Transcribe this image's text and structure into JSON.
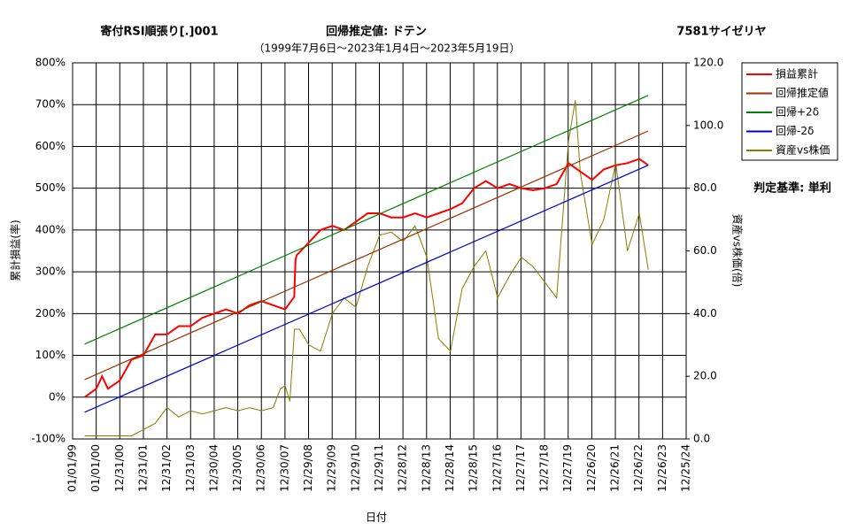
{
  "chart_data": {
    "type": "line",
    "title": "寄付RSI順張り[.]001",
    "subtitle": "（1999年7月6日～2023年1月4日～2023年5月19日）",
    "annotations": [
      "回帰推定値: ドテン",
      "7581サイゼリヤ",
      "判定基準: 単利"
    ],
    "xlabel": "日付",
    "ylabel": "累計損益(率)",
    "y2label": "資産vs株価(倍)",
    "xlim": [
      "01/01/99",
      "12/25/24"
    ],
    "xticks": [
      "01/01/99",
      "01/01/00",
      "12/31/00",
      "12/31/01",
      "12/31/02",
      "12/31/03",
      "12/30/04",
      "12/30/05",
      "12/30/06",
      "12/30/07",
      "12/29/08",
      "12/29/09",
      "12/29/10",
      "12/29/11",
      "12/28/12",
      "12/28/13",
      "12/28/14",
      "12/28/15",
      "12/27/16",
      "12/27/17",
      "12/27/18",
      "12/27/19",
      "12/26/20",
      "12/26/21",
      "12/26/22",
      "12/26/23",
      "12/25/24"
    ],
    "ylim": [
      -100,
      800
    ],
    "yticks": [
      {
        "value": -100,
        "label": "-100%"
      },
      {
        "value": 0,
        "label": "0%"
      },
      {
        "value": 100,
        "label": "100%"
      },
      {
        "value": 200,
        "label": "200%"
      },
      {
        "value": 300,
        "label": "300%"
      },
      {
        "value": 400,
        "label": "400%"
      },
      {
        "value": 500,
        "label": "500%"
      },
      {
        "value": 600,
        "label": "600%"
      },
      {
        "value": 700,
        "label": "700%"
      },
      {
        "value": 800,
        "label": "800%"
      }
    ],
    "y2lim": [
      0,
      120
    ],
    "y2ticks": [
      {
        "value": 0,
        "label": "0.0"
      },
      {
        "value": 20,
        "label": "20.0"
      },
      {
        "value": 40,
        "label": "40.0"
      },
      {
        "value": 60,
        "label": "60.0"
      },
      {
        "value": 80,
        "label": "80.0"
      },
      {
        "value": 100,
        "label": "100.0"
      },
      {
        "value": 120,
        "label": "120.0"
      }
    ],
    "grid": true,
    "legend": "right",
    "series": [
      {
        "name": "損益累計",
        "color": "#ff0000",
        "width": 2,
        "x": [
          "07/06/99",
          "01/01/00",
          "04/01/00",
          "07/01/00",
          "01/01/01",
          "07/01/01",
          "01/01/02",
          "07/01/02",
          "01/01/03",
          "07/01/03",
          "01/01/04",
          "07/01/04",
          "01/01/05",
          "07/01/05",
          "01/01/06",
          "07/01/06",
          "01/01/07",
          "07/01/07",
          "01/01/08",
          "05/20/08",
          "06/10/08",
          "07/01/08",
          "01/01/09",
          "07/01/09",
          "01/01/10",
          "07/01/10",
          "01/01/11",
          "07/01/11",
          "01/01/12",
          "07/01/12",
          "01/01/13",
          "07/01/13",
          "01/01/14",
          "07/01/14",
          "01/01/15",
          "07/01/15",
          "01/01/16",
          "07/01/16",
          "01/01/17",
          "07/01/17",
          "01/01/18",
          "07/01/18",
          "01/01/19",
          "07/01/19",
          "01/01/20",
          "07/01/20",
          "01/01/21",
          "07/01/21",
          "01/01/22",
          "07/01/22",
          "01/01/23",
          "05/19/23"
        ],
        "values": [
          0,
          20,
          50,
          20,
          40,
          90,
          100,
          150,
          150,
          170,
          170,
          190,
          200,
          210,
          200,
          220,
          230,
          220,
          210,
          240,
          330,
          340,
          370,
          400,
          410,
          400,
          420,
          440,
          440,
          430,
          430,
          440,
          430,
          440,
          450,
          464,
          500,
          517,
          500,
          510,
          500,
          495,
          500,
          510,
          560,
          540,
          520,
          545,
          555,
          560,
          570,
          555
        ]
      },
      {
        "name": "回帰推定値",
        "color": "#993300",
        "width": 1.2,
        "x": [
          "07/06/99",
          "05/19/23"
        ],
        "values": [
          42,
          637
        ]
      },
      {
        "name": "回帰+2δ",
        "color": "#008000",
        "width": 1.2,
        "x": [
          "07/06/99",
          "05/19/23"
        ],
        "values": [
          127,
          722
        ]
      },
      {
        "name": "回帰-2δ",
        "color": "#0000cc",
        "width": 1.2,
        "x": [
          "07/06/99",
          "05/19/23"
        ],
        "values": [
          -36,
          555
        ]
      },
      {
        "name": "資産vs株価",
        "color": "#808000",
        "width": 1,
        "axis": "y2",
        "x": [
          "07/06/99",
          "01/01/00",
          "01/01/01",
          "07/01/01",
          "01/01/02",
          "07/01/02",
          "01/01/03",
          "07/01/03",
          "01/01/04",
          "07/01/04",
          "01/01/05",
          "07/01/05",
          "01/01/06",
          "07/01/06",
          "01/01/07",
          "07/01/07",
          "10/20/07",
          "01/01/08",
          "03/15/08",
          "05/25/08",
          "08/10/08",
          "01/01/09",
          "07/01/09",
          "01/01/10",
          "07/01/10",
          "01/01/11",
          "07/01/11",
          "01/01/12",
          "07/01/12",
          "01/01/13",
          "07/01/13",
          "01/01/14",
          "07/01/14",
          "01/01/15",
          "07/01/15",
          "01/01/16",
          "07/01/16",
          "01/01/17",
          "07/01/17",
          "01/01/18",
          "07/01/18",
          "01/01/19",
          "07/01/19",
          "01/01/20",
          "04/15/20",
          "07/01/20",
          "01/01/21",
          "07/01/21",
          "01/01/22",
          "07/01/22",
          "01/01/23",
          "05/19/23"
        ],
        "values": [
          1,
          1,
          1,
          1,
          3,
          5,
          10,
          7,
          9,
          8,
          9,
          10,
          9,
          10,
          9,
          10,
          16,
          17,
          12,
          35,
          35,
          30,
          28,
          40,
          45,
          42,
          55,
          65,
          66,
          63,
          68,
          58,
          32,
          28,
          48,
          55,
          60,
          45,
          52,
          58,
          55,
          50,
          45,
          95,
          108,
          85,
          62,
          70,
          88,
          60,
          72,
          54
        ]
      }
    ]
  }
}
